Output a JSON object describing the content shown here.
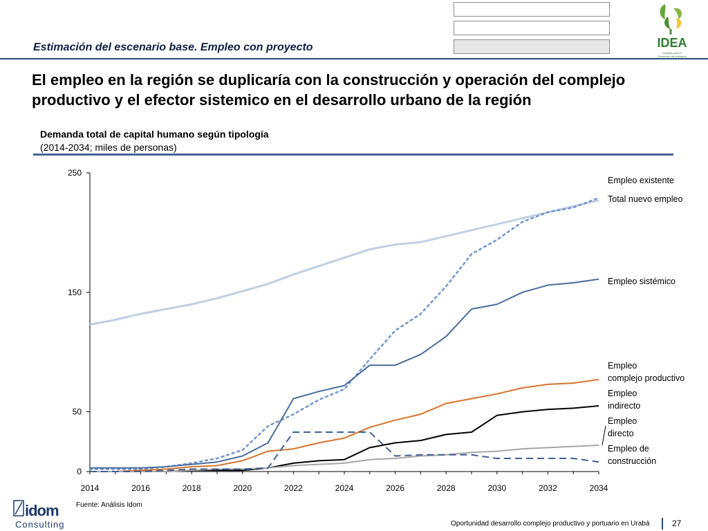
{
  "header": {
    "subtitle": "Estimación del escenario base.  Empleo con proyecto",
    "headline": "El empleo en la región se duplicaría con la construcción y operación del complejo productivo y el efector sistemico en el desarrollo urbano de la región",
    "logo_text": "IDEA",
    "logo_small_text": "Instituto para el Desarrollo de Antioquia"
  },
  "chart_title": "Demanda total de capital humano según tipología",
  "chart_subtitle": "(2014-2034; miles de personas)",
  "chart_data": {
    "type": "line",
    "title": "Demanda total de capital humano según tipología",
    "subtitle": "(2014-2034; miles de personas)",
    "xlabel": "",
    "ylabel": "",
    "ylim": [
      0,
      250
    ],
    "y_ticks": [
      0,
      50,
      150,
      250
    ],
    "x": [
      2014,
      2015,
      2016,
      2017,
      2018,
      2019,
      2020,
      2021,
      2022,
      2023,
      2024,
      2025,
      2026,
      2027,
      2028,
      2029,
      2030,
      2031,
      2032,
      2033,
      2034
    ],
    "x_ticks": [
      "2014",
      "2016",
      "2018",
      "2020",
      "2022",
      "2024",
      "2026",
      "2028",
      "2030",
      "2032",
      "2034"
    ],
    "series": [
      {
        "name": "Empleo existente",
        "label_lines": [
          "Empleo existente"
        ],
        "color": "#c0cfe3",
        "dash": "solid",
        "width": 3,
        "values": [
          123,
          127,
          132,
          136,
          140,
          145,
          151,
          157,
          165,
          172,
          179,
          186,
          190,
          192,
          197,
          202,
          207,
          212,
          217,
          222,
          227
        ]
      },
      {
        "name": "Total nuevo empleo",
        "label_lines": [
          "Total nuevo empleo"
        ],
        "color": "#6f95cf",
        "dash": "dotted",
        "width": 2.5,
        "values": [
          2,
          2,
          2,
          4,
          7,
          11,
          18,
          38,
          48,
          60,
          69,
          94,
          118,
          132,
          155,
          182,
          194,
          209,
          217,
          221,
          229
        ]
      },
      {
        "name": "Empleo sistémico",
        "label_lines": [
          "Empleo sistémico"
        ],
        "color": "#486b9e",
        "dash": "solid",
        "width": 2,
        "values": [
          3,
          3,
          3,
          4,
          6,
          8,
          13,
          24,
          61,
          67,
          72,
          89,
          89,
          98,
          113,
          136,
          140,
          150,
          156,
          158,
          161
        ]
      },
      {
        "name": "Empleo complejo productivo",
        "label_lines": [
          "Empleo",
          "complejo productivo"
        ],
        "color": "#d9722b",
        "dash": "solid",
        "width": 2,
        "values": [
          0,
          0,
          1,
          2,
          4,
          5,
          9,
          17,
          19,
          24,
          28,
          37,
          43,
          48,
          57,
          61,
          65,
          70,
          73,
          74,
          77
        ]
      },
      {
        "name": "Empleo indirecto",
        "label_lines": [
          "Empleo",
          "indirecto"
        ],
        "color": "#000000",
        "dash": "solid",
        "width": 2,
        "values": [
          0,
          0,
          0,
          0,
          1,
          1,
          1,
          3,
          7,
          9,
          10,
          20,
          24,
          26,
          31,
          33,
          47,
          50,
          52,
          53,
          55
        ]
      },
      {
        "name": "Empleo directo",
        "label_lines": [
          "Empleo",
          "directo"
        ],
        "color": "#a6a6a6",
        "dash": "solid",
        "width": 2,
        "values": [
          0,
          0,
          0,
          0,
          1,
          2,
          2,
          3,
          5,
          6,
          7,
          10,
          11,
          13,
          14,
          16,
          17,
          19,
          20,
          21,
          22
        ]
      },
      {
        "name": "Empleo de construcción",
        "label_lines": [
          "Empleo de",
          "construcción"
        ],
        "color": "#3e5f92",
        "dash": "dashed",
        "width": 2,
        "values": [
          0,
          0,
          0,
          1,
          2,
          2,
          2,
          3,
          33,
          33,
          33,
          33,
          13,
          14,
          14,
          14,
          11,
          11,
          11,
          11,
          8
        ]
      }
    ]
  },
  "source": "Fuente: Análisis Idom",
  "footer": {
    "text": "Oportunidad desarrollo complejo productivo y portuario en Urabá",
    "page": "27",
    "brand_top": "idom",
    "brand_bottom": "Consulting"
  }
}
